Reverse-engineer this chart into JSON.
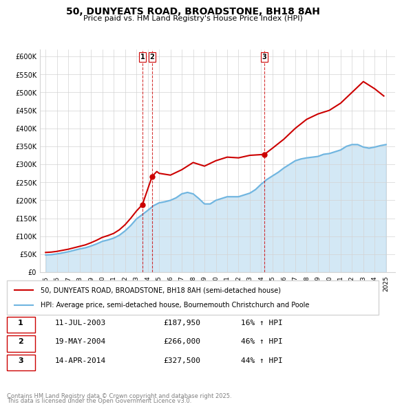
{
  "title": "50, DUNYEATS ROAD, BROADSTONE, BH18 8AH",
  "subtitle": "Price paid vs. HM Land Registry's House Price Index (HPI)",
  "legend_line1": "50, DUNYEATS ROAD, BROADSTONE, BH18 8AH (semi-detached house)",
  "legend_line2": "HPI: Average price, semi-detached house, Bournemouth Christchurch and Poole",
  "footer1": "Contains HM Land Registry data © Crown copyright and database right 2025.",
  "footer2": "This data is licensed under the Open Government Licence v3.0.",
  "transactions": [
    {
      "label": "1",
      "date": "11-JUL-2003",
      "price": 187950,
      "pct": "16%",
      "dir": "↑",
      "x_year": 2003.53
    },
    {
      "label": "2",
      "date": "19-MAY-2004",
      "price": 266000,
      "pct": "46%",
      "dir": "↑",
      "x_year": 2004.38
    },
    {
      "label": "3",
      "date": "14-APR-2014",
      "price": 327500,
      "pct": "44%",
      "dir": "↑",
      "x_year": 2014.28
    }
  ],
  "hpi_color": "#6fb5e0",
  "price_color": "#cc0000",
  "vline_color": "#cc0000",
  "ylim": [
    0,
    620000
  ],
  "xlim_start": 1994.5,
  "xlim_end": 2025.8,
  "yticks": [
    0,
    50000,
    100000,
    150000,
    200000,
    250000,
    300000,
    350000,
    400000,
    450000,
    500000,
    550000,
    600000
  ],
  "ytick_labels": [
    "£0",
    "£50K",
    "£100K",
    "£150K",
    "£200K",
    "£250K",
    "£300K",
    "£350K",
    "£400K",
    "£450K",
    "£500K",
    "£550K",
    "£600K"
  ],
  "hpi_data": {
    "years": [
      1995.0,
      1995.5,
      1996.0,
      1996.5,
      1997.0,
      1997.5,
      1998.0,
      1998.5,
      1999.0,
      1999.5,
      2000.0,
      2000.5,
      2001.0,
      2001.5,
      2002.0,
      2002.5,
      2003.0,
      2003.5,
      2004.0,
      2004.5,
      2005.0,
      2005.5,
      2006.0,
      2006.5,
      2007.0,
      2007.5,
      2008.0,
      2008.5,
      2009.0,
      2009.5,
      2010.0,
      2010.5,
      2011.0,
      2011.5,
      2012.0,
      2012.5,
      2013.0,
      2013.5,
      2014.0,
      2014.5,
      2015.0,
      2015.5,
      2016.0,
      2016.5,
      2017.0,
      2017.5,
      2018.0,
      2018.5,
      2019.0,
      2019.5,
      2020.0,
      2020.5,
      2021.0,
      2021.5,
      2022.0,
      2022.5,
      2023.0,
      2023.5,
      2024.0,
      2024.5,
      2025.0
    ],
    "values": [
      48000,
      49000,
      51000,
      54000,
      57000,
      61000,
      65000,
      68000,
      73000,
      79000,
      86000,
      90000,
      95000,
      103000,
      115000,
      130000,
      148000,
      160000,
      172000,
      185000,
      193000,
      196000,
      200000,
      207000,
      218000,
      222000,
      218000,
      205000,
      190000,
      190000,
      200000,
      205000,
      210000,
      210000,
      210000,
      215000,
      220000,
      230000,
      245000,
      258000,
      268000,
      278000,
      290000,
      300000,
      310000,
      315000,
      318000,
      320000,
      322000,
      328000,
      330000,
      335000,
      340000,
      350000,
      355000,
      355000,
      348000,
      345000,
      348000,
      352000,
      355000
    ]
  },
  "price_data": {
    "years": [
      1995.0,
      1995.5,
      1996.0,
      1996.5,
      1997.0,
      1997.5,
      1998.0,
      1998.5,
      1999.0,
      1999.5,
      2000.0,
      2000.5,
      2001.0,
      2001.5,
      2002.0,
      2002.5,
      2003.0,
      2003.53,
      2004.38,
      2004.8,
      2005.0,
      2006.0,
      2007.0,
      2008.0,
      2009.0,
      2010.0,
      2011.0,
      2012.0,
      2013.0,
      2014.28,
      2015.0,
      2016.0,
      2017.0,
      2018.0,
      2019.0,
      2020.0,
      2021.0,
      2022.0,
      2023.0,
      2024.0,
      2024.8
    ],
    "values": [
      55000,
      56000,
      58000,
      61000,
      64000,
      68000,
      72000,
      76000,
      82000,
      89000,
      97000,
      102000,
      108000,
      118000,
      132000,
      150000,
      170000,
      187950,
      266000,
      280000,
      275000,
      270000,
      285000,
      305000,
      295000,
      310000,
      320000,
      318000,
      325000,
      327500,
      345000,
      370000,
      400000,
      425000,
      440000,
      450000,
      470000,
      500000,
      530000,
      510000,
      490000
    ]
  }
}
